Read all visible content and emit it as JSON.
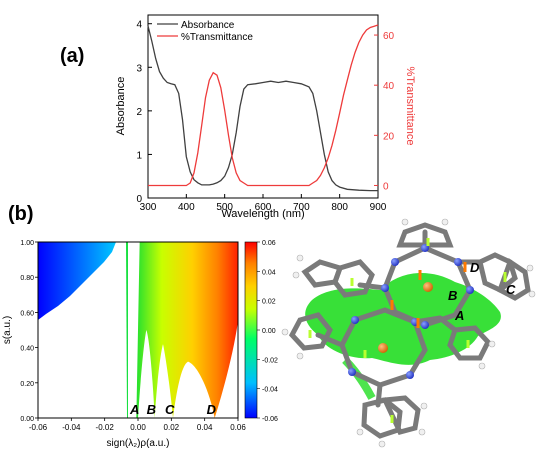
{
  "panels": {
    "a": {
      "label": "(a)"
    },
    "b": {
      "label": "(b)"
    }
  },
  "chart_data": [
    {
      "type": "line",
      "panel": "a",
      "xlabel": "Wavelength (nm)",
      "ylabel_left": "Absorbance",
      "ylabel_right": "%Transmittance",
      "xlim": [
        300,
        900
      ],
      "ylim_left": [
        0,
        4.2
      ],
      "ylim_right": [
        -5,
        68
      ],
      "x_ticks": [
        300,
        400,
        500,
        600,
        700,
        800,
        900
      ],
      "y_ticks_left": [
        0,
        1,
        2,
        3,
        4
      ],
      "y_ticks_right": [
        0,
        20,
        40,
        60
      ],
      "legend_position": "top-left",
      "series": [
        {
          "name": "Absorbance",
          "axis": "left",
          "color": "#404040",
          "x": [
            300,
            310,
            320,
            330,
            340,
            350,
            360,
            370,
            380,
            390,
            400,
            410,
            420,
            430,
            440,
            450,
            460,
            470,
            480,
            490,
            500,
            510,
            520,
            530,
            540,
            550,
            560,
            580,
            600,
            620,
            640,
            660,
            680,
            700,
            720,
            730,
            740,
            750,
            760,
            770,
            780,
            790,
            800,
            820,
            850,
            880,
            900
          ],
          "y": [
            3.95,
            3.6,
            3.2,
            2.9,
            2.75,
            2.65,
            2.62,
            2.6,
            2.4,
            1.8,
            0.95,
            0.6,
            0.42,
            0.35,
            0.3,
            0.3,
            0.3,
            0.32,
            0.35,
            0.4,
            0.5,
            0.7,
            1.0,
            1.5,
            2.1,
            2.5,
            2.6,
            2.62,
            2.65,
            2.68,
            2.65,
            2.68,
            2.65,
            2.62,
            2.55,
            2.4,
            2.0,
            1.5,
            1.0,
            0.6,
            0.4,
            0.3,
            0.25,
            0.2,
            0.18,
            0.17,
            0.17
          ]
        },
        {
          "name": "%Transmittance",
          "axis": "right",
          "color": "#ee3b3b",
          "x": [
            300,
            350,
            400,
            410,
            420,
            430,
            440,
            450,
            460,
            470,
            480,
            490,
            500,
            510,
            520,
            530,
            540,
            550,
            560,
            600,
            650,
            700,
            710,
            720,
            730,
            740,
            750,
            760,
            770,
            780,
            790,
            800,
            810,
            820,
            830,
            840,
            850,
            860,
            870,
            880,
            890,
            900
          ],
          "y": [
            0,
            0,
            0,
            1,
            5,
            13,
            24,
            35,
            42,
            45,
            44,
            39,
            30,
            20,
            11,
            5,
            2,
            1,
            0,
            0,
            0,
            0,
            0,
            0,
            1,
            2,
            4,
            7,
            11,
            16,
            22,
            29,
            36,
            42,
            48,
            53,
            57,
            60,
            62,
            63,
            63.5,
            64
          ]
        }
      ]
    },
    {
      "type": "scatter",
      "panel": "b",
      "xlabel": "sign(λ₂)ρ(a.u.)",
      "ylabel": "s(a.u.)",
      "xlim": [
        -0.06,
        0.06
      ],
      "ylim": [
        0,
        1
      ],
      "x_ticks": [
        -0.06,
        -0.04,
        -0.02,
        0.0,
        0.02,
        0.04,
        0.06
      ],
      "x_tick_labels": [
        "-0.06",
        "-0.04",
        "-0.02",
        "0.00",
        "0.02",
        "0.04",
        "0.06"
      ],
      "y_ticks": [
        0,
        0.2,
        0.4,
        0.6,
        0.8,
        1.0
      ],
      "y_tick_labels": [
        "0.00",
        "0.20",
        "0.40",
        "0.60",
        "0.80",
        "1.00"
      ],
      "colorbar": {
        "min": -0.06,
        "max": 0.06,
        "ticks": [
          0.06,
          0.04,
          0.02,
          0.0,
          -0.02,
          -0.04,
          -0.06
        ],
        "tick_labels": [
          "0.06",
          "0.04",
          "0.02",
          "0.00",
          "-0.02",
          "-0.04",
          "-0.06"
        ],
        "colors": [
          "#0000ff",
          "#00bfff",
          "#00ff66",
          "#ffff00",
          "#ff8000",
          "#ff0000"
        ]
      },
      "spikes": [
        {
          "label": "A",
          "x": 0.0,
          "s_min": 0.0
        },
        {
          "label": "B",
          "x": 0.01,
          "s_min": 0.0
        },
        {
          "label": "C",
          "x": 0.021,
          "s_min": 0.0
        },
        {
          "label": "D",
          "x": 0.046,
          "s_min": 0.0
        }
      ]
    }
  ],
  "molecule": {
    "labels": [
      "D",
      "B",
      "C",
      "A"
    ]
  }
}
